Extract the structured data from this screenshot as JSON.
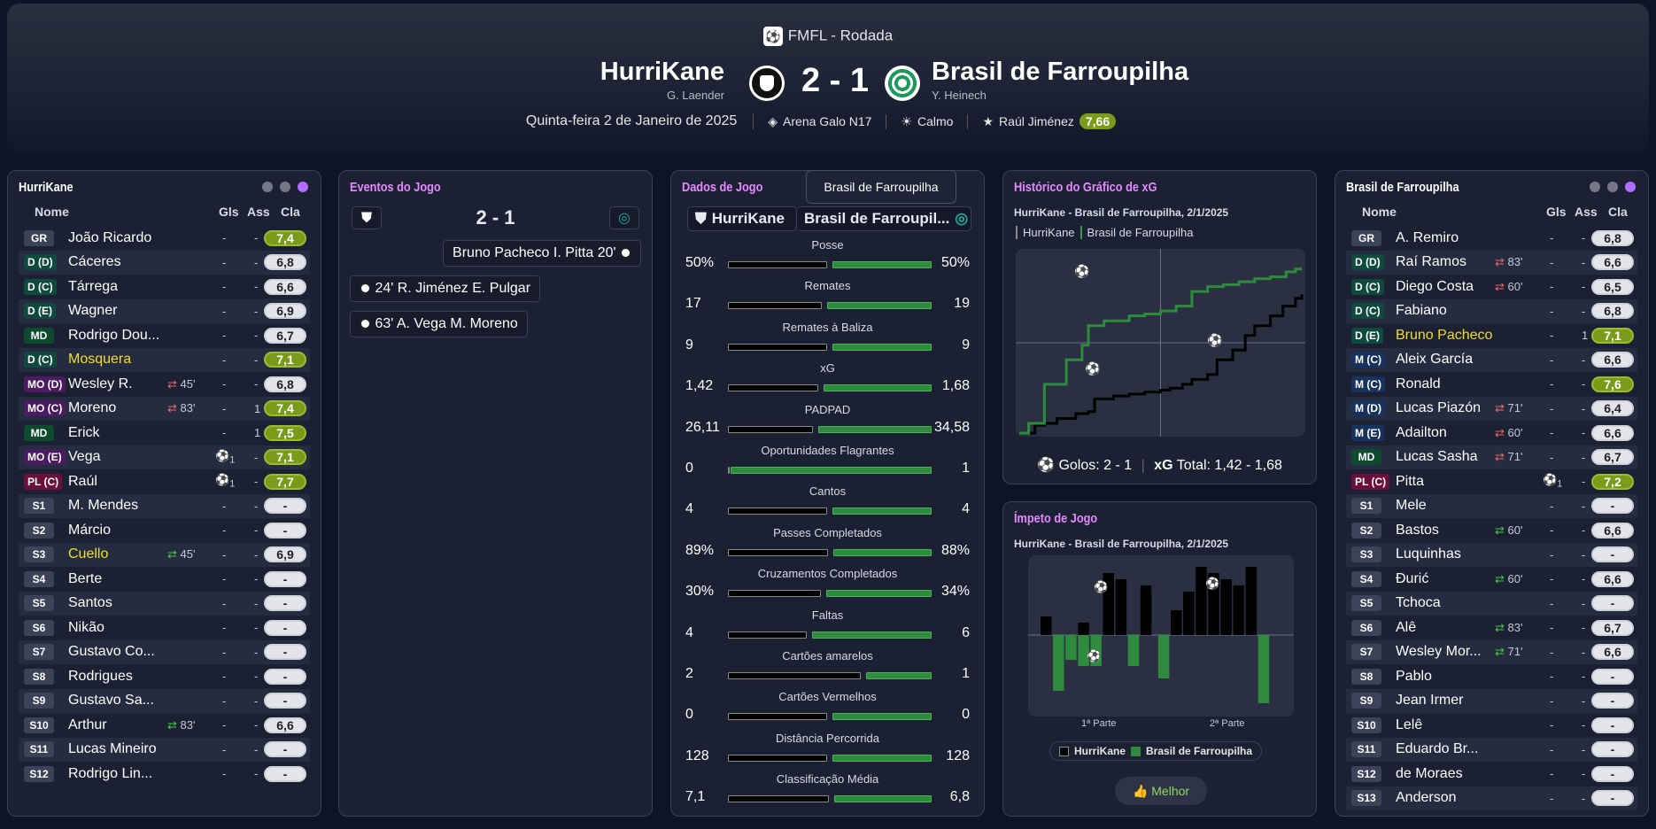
{
  "competition": "FMFL - Rodada",
  "home": {
    "name": "HurriKane",
    "manager": "G. Laender"
  },
  "away": {
    "name": "Brasil de Farroupilha",
    "manager": "Y. Heinech"
  },
  "score": "2 - 1",
  "date": "Quinta-feira 2 de Janeiro de 2025",
  "stadium": "Arena Galo N17",
  "weather": "Calmo",
  "pom": {
    "name": "Raúl Jiménez",
    "rating": "7,66"
  },
  "colors": {
    "accent": "#e58aff",
    "rating_green": "#7a9a1a",
    "home_bar": "#000000",
    "away_bar": "#2e8b3e"
  },
  "cols": {
    "name": "Nome",
    "gls": "Gls",
    "ass": "Ass",
    "cla": "Cla"
  },
  "home_panel": {
    "title": "HurriKane",
    "players": [
      {
        "pos": "GR",
        "cls": "pGR",
        "name": "João Ricardo",
        "gls": "-",
        "ass": "-",
        "rating": "7,4",
        "hi": true
      },
      {
        "pos": "D (D)",
        "cls": "pD",
        "name": "Cáceres",
        "gls": "-",
        "ass": "-",
        "rating": "6,8"
      },
      {
        "pos": "D (C)",
        "cls": "pD",
        "name": "Tárrega",
        "gls": "-",
        "ass": "-",
        "rating": "6,6"
      },
      {
        "pos": "D (E)",
        "cls": "pD",
        "name": "Wagner",
        "gls": "-",
        "ass": "-",
        "rating": "6,9"
      },
      {
        "pos": "MD",
        "cls": "pMD",
        "name": "Rodrigo Dou...",
        "gls": "-",
        "ass": "-",
        "rating": "6,7"
      },
      {
        "pos": "D (C)",
        "cls": "pD",
        "name": "Mosquera",
        "yl": true,
        "gls": "-",
        "ass": "-",
        "rating": "7,1",
        "hi": true
      },
      {
        "pos": "MO (D)",
        "cls": "pMO",
        "name": "Wesley R.",
        "sub": "45'",
        "out": true,
        "gls": "-",
        "ass": "-",
        "rating": "6,8"
      },
      {
        "pos": "MO (C)",
        "cls": "pMO",
        "name": "Moreno",
        "sub": "83'",
        "out": true,
        "gls": "-",
        "ass": "1",
        "rating": "7,4",
        "hi": true
      },
      {
        "pos": "MD",
        "cls": "pMD",
        "name": "Erick",
        "gls": "-",
        "ass": "1",
        "rating": "7,5",
        "hi": true
      },
      {
        "pos": "MO (E)",
        "cls": "pMO",
        "name": "Vega",
        "gl": "1",
        "ass": "-",
        "rating": "7,1",
        "hi": true
      },
      {
        "pos": "PL (C)",
        "cls": "pPL",
        "name": "Raúl",
        "gl": "1",
        "ass": "-",
        "rating": "7,7",
        "hi": true
      },
      {
        "pos": "S1",
        "cls": "pS",
        "name": "M. Mendes",
        "gls": "-",
        "ass": "-",
        "rating": "-"
      },
      {
        "pos": "S2",
        "cls": "pS",
        "name": "Márcio",
        "gls": "-",
        "ass": "-",
        "rating": "-"
      },
      {
        "pos": "S3",
        "cls": "pS",
        "name": "Cuello",
        "yl": true,
        "sub": "45'",
        "gls": "-",
        "ass": "-",
        "rating": "6,9"
      },
      {
        "pos": "S4",
        "cls": "pS",
        "name": "Berte",
        "gls": "-",
        "ass": "-",
        "rating": "-"
      },
      {
        "pos": "S5",
        "cls": "pS",
        "name": "Santos",
        "gls": "-",
        "ass": "-",
        "rating": "-"
      },
      {
        "pos": "S6",
        "cls": "pS",
        "name": "Nikão",
        "gls": "-",
        "ass": "-",
        "rating": "-"
      },
      {
        "pos": "S7",
        "cls": "pS",
        "name": "Gustavo Co...",
        "gls": "-",
        "ass": "-",
        "rating": "-"
      },
      {
        "pos": "S8",
        "cls": "pS",
        "name": "Rodrigues",
        "gls": "-",
        "ass": "-",
        "rating": "-"
      },
      {
        "pos": "S9",
        "cls": "pS",
        "name": "Gustavo Sa...",
        "gls": "-",
        "ass": "-",
        "rating": "-"
      },
      {
        "pos": "S10",
        "cls": "pS",
        "name": "Arthur",
        "sub": "83'",
        "gls": "-",
        "ass": "-",
        "rating": "6,6"
      },
      {
        "pos": "S11",
        "cls": "pS",
        "name": "Lucas Mineiro",
        "gls": "-",
        "ass": "-",
        "rating": "-"
      },
      {
        "pos": "S12",
        "cls": "pS",
        "name": "Rodrigo Lin...",
        "gls": "-",
        "ass": "-",
        "rating": "-"
      }
    ]
  },
  "away_panel": {
    "title": "Brasil de Farroupilha",
    "players": [
      {
        "pos": "GR",
        "cls": "pGR",
        "name": "A. Remiro",
        "gls": "-",
        "ass": "-",
        "rating": "6,8"
      },
      {
        "pos": "D (D)",
        "cls": "pD",
        "name": "Raí Ramos",
        "sub": "83'",
        "out": true,
        "gls": "-",
        "ass": "-",
        "rating": "6,6"
      },
      {
        "pos": "D (C)",
        "cls": "pD",
        "name": "Diego Costa",
        "sub": "60'",
        "out": true,
        "gls": "-",
        "ass": "-",
        "rating": "6,5"
      },
      {
        "pos": "D (C)",
        "cls": "pD",
        "name": "Fabiano",
        "gls": "-",
        "ass": "-",
        "rating": "6,8"
      },
      {
        "pos": "D (E)",
        "cls": "pD",
        "name": "Bruno Pacheco",
        "yl": true,
        "gls": "-",
        "ass": "1",
        "rating": "7,1",
        "hi": true
      },
      {
        "pos": "M (C)",
        "cls": "pM",
        "name": "Aleix García",
        "gls": "-",
        "ass": "-",
        "rating": "6,6"
      },
      {
        "pos": "M (C)",
        "cls": "pM",
        "name": "Ronald",
        "gls": "-",
        "ass": "-",
        "rating": "7,6",
        "hi": true
      },
      {
        "pos": "M (D)",
        "cls": "pM",
        "name": "Lucas Piazón",
        "sub": "71'",
        "out": true,
        "gls": "-",
        "ass": "-",
        "rating": "6,4"
      },
      {
        "pos": "M (E)",
        "cls": "pM",
        "name": "Adailton",
        "sub": "60'",
        "out": true,
        "gls": "-",
        "ass": "-",
        "rating": "6,6"
      },
      {
        "pos": "MD",
        "cls": "pMD",
        "name": "Lucas Sasha",
        "sub": "71'",
        "out": true,
        "gls": "-",
        "ass": "-",
        "rating": "6,7"
      },
      {
        "pos": "PL (C)",
        "cls": "pPL",
        "name": "Pitta",
        "gl": "1",
        "ass": "-",
        "rating": "7,2",
        "hi": true
      },
      {
        "pos": "S1",
        "cls": "pS",
        "name": "Mele",
        "gls": "-",
        "ass": "-",
        "rating": "-"
      },
      {
        "pos": "S2",
        "cls": "pS",
        "name": "Bastos",
        "sub": "60'",
        "gls": "-",
        "ass": "-",
        "rating": "6,6"
      },
      {
        "pos": "S3",
        "cls": "pS",
        "name": "Luquinhas",
        "gls": "-",
        "ass": "-",
        "rating": "-"
      },
      {
        "pos": "S4",
        "cls": "pS",
        "name": "Đurić",
        "sub": "60'",
        "gls": "-",
        "ass": "-",
        "rating": "6,6"
      },
      {
        "pos": "S5",
        "cls": "pS",
        "name": "Tchoca",
        "gls": "-",
        "ass": "-",
        "rating": "-"
      },
      {
        "pos": "S6",
        "cls": "pS",
        "name": "Alê",
        "sub": "83'",
        "gls": "-",
        "ass": "-",
        "rating": "6,7"
      },
      {
        "pos": "S7",
        "cls": "pS",
        "name": "Wesley Mor...",
        "sub": "71'",
        "gls": "-",
        "ass": "-",
        "rating": "6,6"
      },
      {
        "pos": "S8",
        "cls": "pS",
        "name": "Pablo",
        "gls": "-",
        "ass": "-",
        "rating": "-"
      },
      {
        "pos": "S9",
        "cls": "pS",
        "name": "Jean Irmer",
        "gls": "-",
        "ass": "-",
        "rating": "-"
      },
      {
        "pos": "S10",
        "cls": "pS",
        "name": "Lelê",
        "gls": "-",
        "ass": "-",
        "rating": "-"
      },
      {
        "pos": "S11",
        "cls": "pS",
        "name": "Eduardo Br...",
        "gls": "-",
        "ass": "-",
        "rating": "-"
      },
      {
        "pos": "S12",
        "cls": "pS",
        "name": "de Moraes",
        "gls": "-",
        "ass": "-",
        "rating": "-"
      },
      {
        "pos": "S13",
        "cls": "pS",
        "name": "Anderson",
        "gls": "-",
        "ass": "-",
        "rating": "-"
      }
    ]
  },
  "events": {
    "title": "Eventos do Jogo",
    "score": "2 - 1",
    "items": [
      {
        "side": "away",
        "text": "Bruno Pacheco  I. Pitta  20'"
      },
      {
        "side": "home",
        "text": "24'  R. Jiménez  E. Pulgar"
      },
      {
        "side": "home",
        "text": "63'  A. Vega  M. Moreno"
      }
    ]
  },
  "stats": {
    "title": "Dados de Jogo",
    "tooltip": "Brasil de Farroupilha",
    "tab_home": "HurriKane",
    "tab_away": "Brasil de Farroupil...",
    "rows": [
      {
        "label": "Posse",
        "home": "50%",
        "away": "50%",
        "h": 50,
        "a": 50
      },
      {
        "label": "Remates",
        "home": "17",
        "away": "19",
        "h": 17,
        "a": 19
      },
      {
        "label": "Remates à Baliza",
        "home": "9",
        "away": "9",
        "h": 9,
        "a": 9
      },
      {
        "label": "xG",
        "home": "1,42",
        "away": "1,68",
        "h": 1.42,
        "a": 1.68
      },
      {
        "label": "PADPAD",
        "home": "26,11",
        "away": "34,58",
        "h": 26.11,
        "a": 34.58
      },
      {
        "label": "Oportunidades Flagrantes",
        "home": "0",
        "away": "1",
        "h": 0,
        "a": 1
      },
      {
        "label": "Cantos",
        "home": "4",
        "away": "4",
        "h": 4,
        "a": 4
      },
      {
        "label": "Passes Completados",
        "home": "89%",
        "away": "88%",
        "h": 89,
        "a": 88
      },
      {
        "label": "Cruzamentos Completados",
        "home": "30%",
        "away": "34%",
        "h": 30,
        "a": 34
      },
      {
        "label": "Faltas",
        "home": "4",
        "away": "6",
        "h": 4,
        "a": 6
      },
      {
        "label": "Cartões amarelos",
        "home": "2",
        "away": "1",
        "h": 2,
        "a": 1
      },
      {
        "label": "Cartões Vermelhos",
        "home": "0",
        "away": "0",
        "h": 0,
        "a": 0
      },
      {
        "label": "Distância Percorrida",
        "home": "128",
        "away": "128",
        "h": 128,
        "a": 128
      },
      {
        "label": "Classificação Média",
        "home": "7,1",
        "away": "6,8",
        "h": 7.1,
        "a": 6.8
      }
    ]
  },
  "xg_panel": {
    "title": "Histórico do Gráfico de xG",
    "subtitle": "HurriKane - Brasil de Farroupilha, 2/1/2025",
    "legend_home": "HurriKane",
    "legend_away": "Brasil de Farroupilha",
    "goals_label": "Golos:",
    "goals": "2 - 1",
    "xg_label": "xG",
    "total_label": "Total:",
    "total": "1,42 - 1,68"
  },
  "chart_data": [
    {
      "type": "line",
      "series": [
        {
          "name": "HurriKane",
          "x": [
            0,
            5,
            8,
            12,
            18,
            22,
            24,
            30,
            35,
            40,
            45,
            48,
            52,
            55,
            60,
            63,
            68,
            72,
            75,
            80,
            84,
            88,
            90
          ],
          "y": [
            0,
            0.08,
            0.1,
            0.15,
            0.2,
            0.22,
            0.35,
            0.38,
            0.4,
            0.42,
            0.44,
            0.46,
            0.5,
            0.55,
            0.6,
            0.75,
            0.85,
            1.0,
            1.1,
            1.2,
            1.3,
            1.38,
            1.42
          ]
        },
        {
          "name": "Brasil de Farroupilha",
          "x": [
            0,
            3,
            8,
            15,
            20,
            22,
            27,
            35,
            40,
            45,
            50,
            55,
            60,
            65,
            70,
            75,
            80,
            85,
            88,
            90
          ],
          "y": [
            0,
            0.1,
            0.5,
            0.75,
            0.9,
            1.1,
            1.15,
            1.2,
            1.22,
            1.25,
            1.3,
            1.45,
            1.5,
            1.52,
            1.55,
            1.58,
            1.6,
            1.65,
            1.68,
            1.68
          ]
        }
      ]
    },
    {
      "type": "bar",
      "series": [
        {
          "name": "HurriKane",
          "values": [
            0.15,
            0,
            0,
            0.1,
            0,
            0.5,
            0.45,
            0,
            0.4,
            0,
            0.2,
            0.35,
            0.55,
            0.5,
            0.45,
            0.4,
            0.55,
            0
          ]
        },
        {
          "name": "Brasil de Farroupilha",
          "values": [
            0,
            0.45,
            0.2,
            0.25,
            0.25,
            0,
            0,
            0.25,
            0,
            0.35,
            0,
            0,
            0,
            0,
            0,
            0,
            0,
            0.55
          ]
        }
      ],
      "xlabel_first": "1ª Parte",
      "xlabel_second": "2ª Parte"
    }
  ],
  "momentum": {
    "title": "Ímpeto de Jogo",
    "subtitle": "HurriKane - Brasil de Farroupilha, 2/1/2025",
    "half1": "1ª Parte",
    "half2": "2ª Parte",
    "legend_home": "HurriKane",
    "legend_away": "Brasil de Farroupilha",
    "button": "Melhor"
  }
}
